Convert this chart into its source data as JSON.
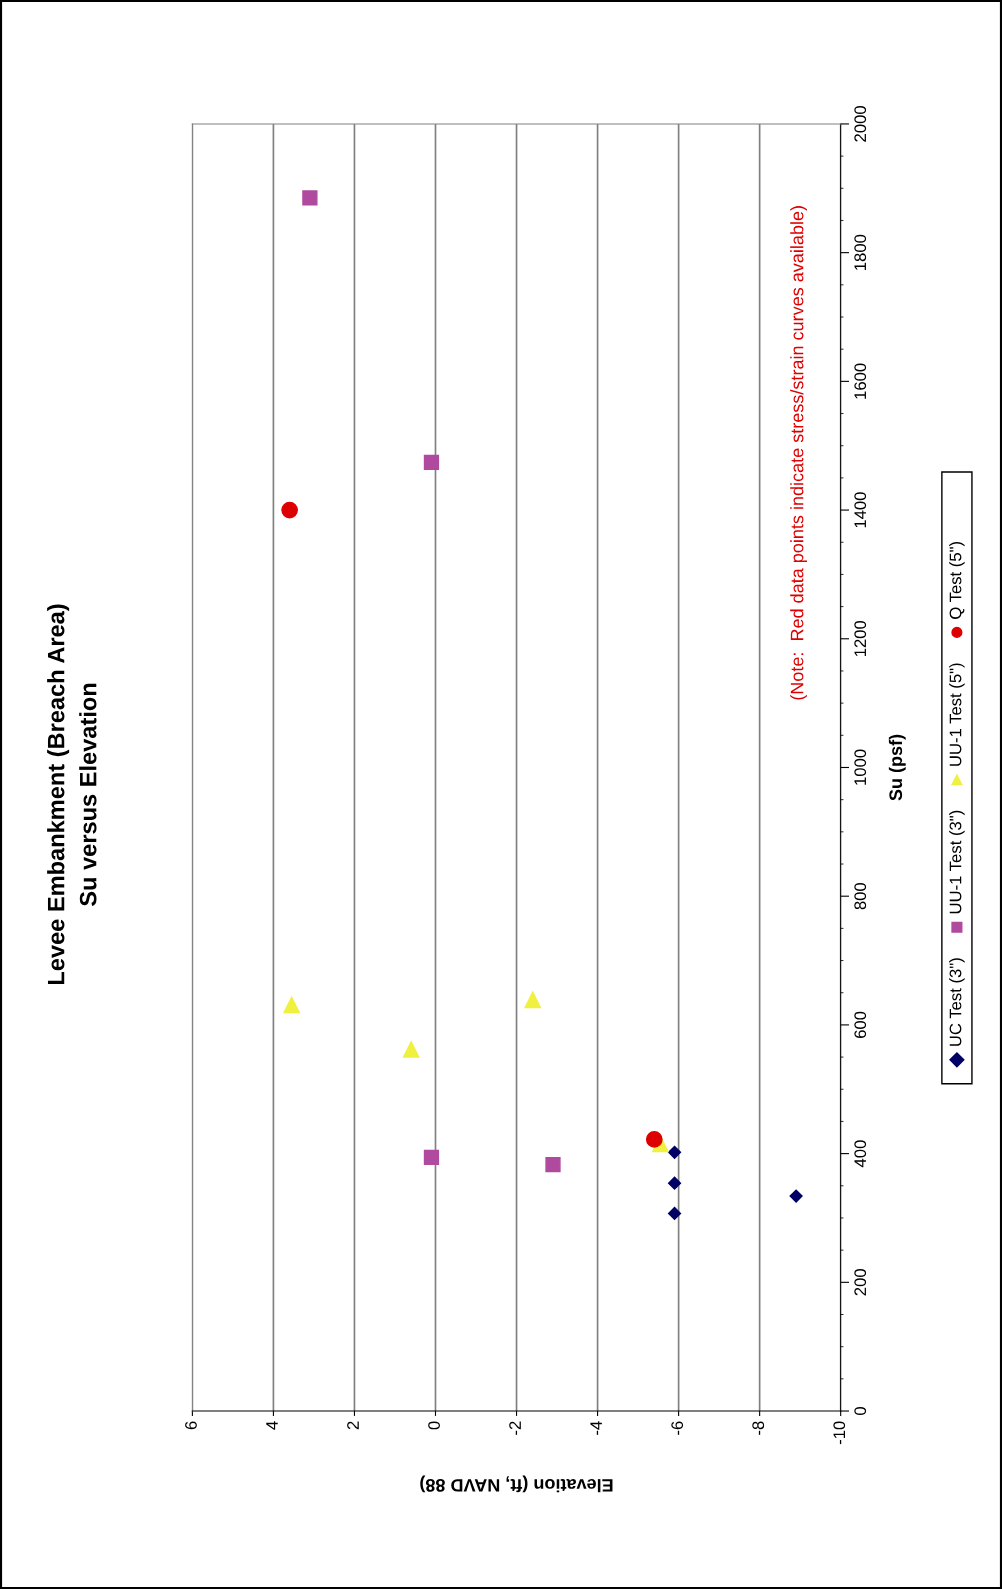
{
  "chart_data": {
    "type": "scatter",
    "title": "Levee Embankment (Breach Area)",
    "subtitle": "Su versus Elevation",
    "xlabel": "Elevation (ft, NAVD 88)",
    "ylabel": "Su (psf)",
    "xlim": [
      6,
      -10
    ],
    "xticks": [
      6,
      4,
      2,
      0,
      -2,
      -4,
      -6,
      -8,
      -10
    ],
    "ylim": [
      0,
      2000
    ],
    "yticks": [
      0,
      200,
      400,
      600,
      800,
      1000,
      1200,
      1400,
      1600,
      1800,
      2000
    ],
    "grid": "x",
    "legend": "right",
    "annotations": [
      "(Note:  Red data points indicate stress/strain curves available)"
    ],
    "series": [
      {
        "name": "UC Test (3\")",
        "color": "#000066",
        "marker": "diamond",
        "x": [
          -5.9,
          -5.9,
          -5.9,
          -8.9
        ],
        "values": [
          307,
          354,
          402,
          334
        ]
      },
      {
        "name": "UU-1 Test (3\")",
        "color": "#b04a9e",
        "marker": "square",
        "x": [
          3.1,
          0.1,
          0.1,
          -2.9
        ],
        "values": [
          1885,
          1474,
          394,
          383
        ]
      },
      {
        "name": "UU-1 Test (5\")",
        "color": "#f0f040",
        "marker": "triangle",
        "x": [
          3.55,
          0.6,
          -2.4,
          -5.55
        ],
        "values": [
          631,
          562,
          639,
          415
        ]
      },
      {
        "name": "Q Test (5\")",
        "color": "#dd0000",
        "marker": "circle",
        "x": [
          3.6,
          -5.4
        ],
        "values": [
          1400,
          422
        ]
      }
    ]
  }
}
